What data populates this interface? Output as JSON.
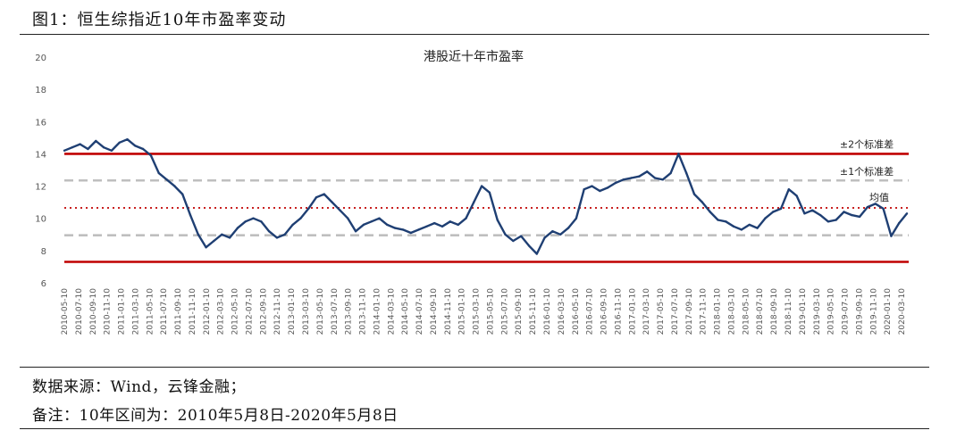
{
  "header": {
    "figure_title": "图1：恒生综指近10年市盈率变动"
  },
  "footer": {
    "source": "数据来源：Wind，云锋金融；",
    "note": "备注：10年区间为：2010年5月8日-2020年5月8日"
  },
  "colors": {
    "series": "#1f3f73",
    "band2": "#c00000",
    "band1": "#bfbfbf",
    "mean": "#c00000"
  },
  "chart_data": {
    "type": "line",
    "title": "港股近十年市盈率",
    "xlabel": "",
    "ylabel": "",
    "ylim": [
      6,
      20
    ],
    "yticks": [
      6,
      8,
      10,
      12,
      14,
      16,
      18,
      20
    ],
    "grid": false,
    "x_start": "2010-05",
    "x_ticks": [
      "2010-05-10",
      "2010-07-10",
      "2010-09-10",
      "2010-11-10",
      "2011-01-10",
      "2011-03-10",
      "2011-05-10",
      "2011-07-10",
      "2011-09-10",
      "2011-11-10",
      "2012-01-10",
      "2012-03-10",
      "2012-05-10",
      "2012-07-10",
      "2012-09-10",
      "2012-11-10",
      "2013-01-10",
      "2013-03-10",
      "2013-05-10",
      "2013-07-10",
      "2013-09-10",
      "2013-11-10",
      "2014-01-10",
      "2014-03-10",
      "2014-05-10",
      "2014-07-10",
      "2014-09-10",
      "2014-11-10",
      "2015-01-10",
      "2015-03-10",
      "2015-05-10",
      "2015-07-10",
      "2015-09-10",
      "2015-11-10",
      "2016-01-10",
      "2016-03-10",
      "2016-05-10",
      "2016-07-10",
      "2016-09-10",
      "2016-11-10",
      "2017-01-10",
      "2017-03-10",
      "2017-05-10",
      "2017-07-10",
      "2017-09-10",
      "2017-11-10",
      "2018-01-10",
      "2018-03-10",
      "2018-05-10",
      "2018-07-10",
      "2018-09-10",
      "2018-11-10",
      "2019-01-10",
      "2019-03-10",
      "2019-05-10",
      "2019-07-10",
      "2019-09-10",
      "2019-11-10",
      "2020-01-10",
      "2020-03-10"
    ],
    "series": [
      {
        "name": "",
        "values": [
          14.2,
          14.4,
          14.6,
          14.3,
          14.8,
          14.4,
          14.2,
          14.7,
          14.9,
          14.5,
          14.3,
          13.9,
          12.8,
          12.4,
          12.0,
          11.5,
          10.2,
          9.0,
          8.2,
          8.6,
          9.0,
          8.8,
          9.4,
          9.8,
          10.0,
          9.8,
          9.2,
          8.8,
          9.0,
          9.6,
          10.0,
          10.6,
          11.3,
          11.5,
          11.0,
          10.5,
          10.0,
          9.2,
          9.6,
          9.8,
          10.0,
          9.6,
          9.4,
          9.3,
          9.1,
          9.3,
          9.5,
          9.7,
          9.5,
          9.8,
          9.6,
          10.0,
          11.0,
          12.0,
          11.6,
          9.9,
          9.0,
          8.6,
          8.9,
          8.3,
          7.8,
          8.8,
          9.2,
          9.0,
          9.4,
          10.0,
          11.8,
          12.0,
          11.7,
          11.9,
          12.2,
          12.4,
          12.5,
          12.6,
          12.9,
          12.5,
          12.4,
          12.8,
          14.0,
          12.8,
          11.5,
          11.0,
          10.4,
          9.9,
          9.8,
          9.5,
          9.3,
          9.6,
          9.4,
          10.0,
          10.4,
          10.6,
          11.8,
          11.4,
          10.3,
          10.5,
          10.2,
          9.8,
          9.9,
          10.4,
          10.2,
          10.1,
          10.7,
          10.9,
          10.6,
          8.9,
          9.7,
          10.3
        ]
      }
    ],
    "reference_lines": [
      {
        "label": "±2个标准差",
        "value": 14.0
      },
      {
        "label": "±1个标准差",
        "value": 12.35
      },
      {
        "label": "均值",
        "value": 10.65
      },
      {
        "label": "",
        "value": 8.95
      },
      {
        "label": "",
        "value": 7.3
      }
    ]
  }
}
